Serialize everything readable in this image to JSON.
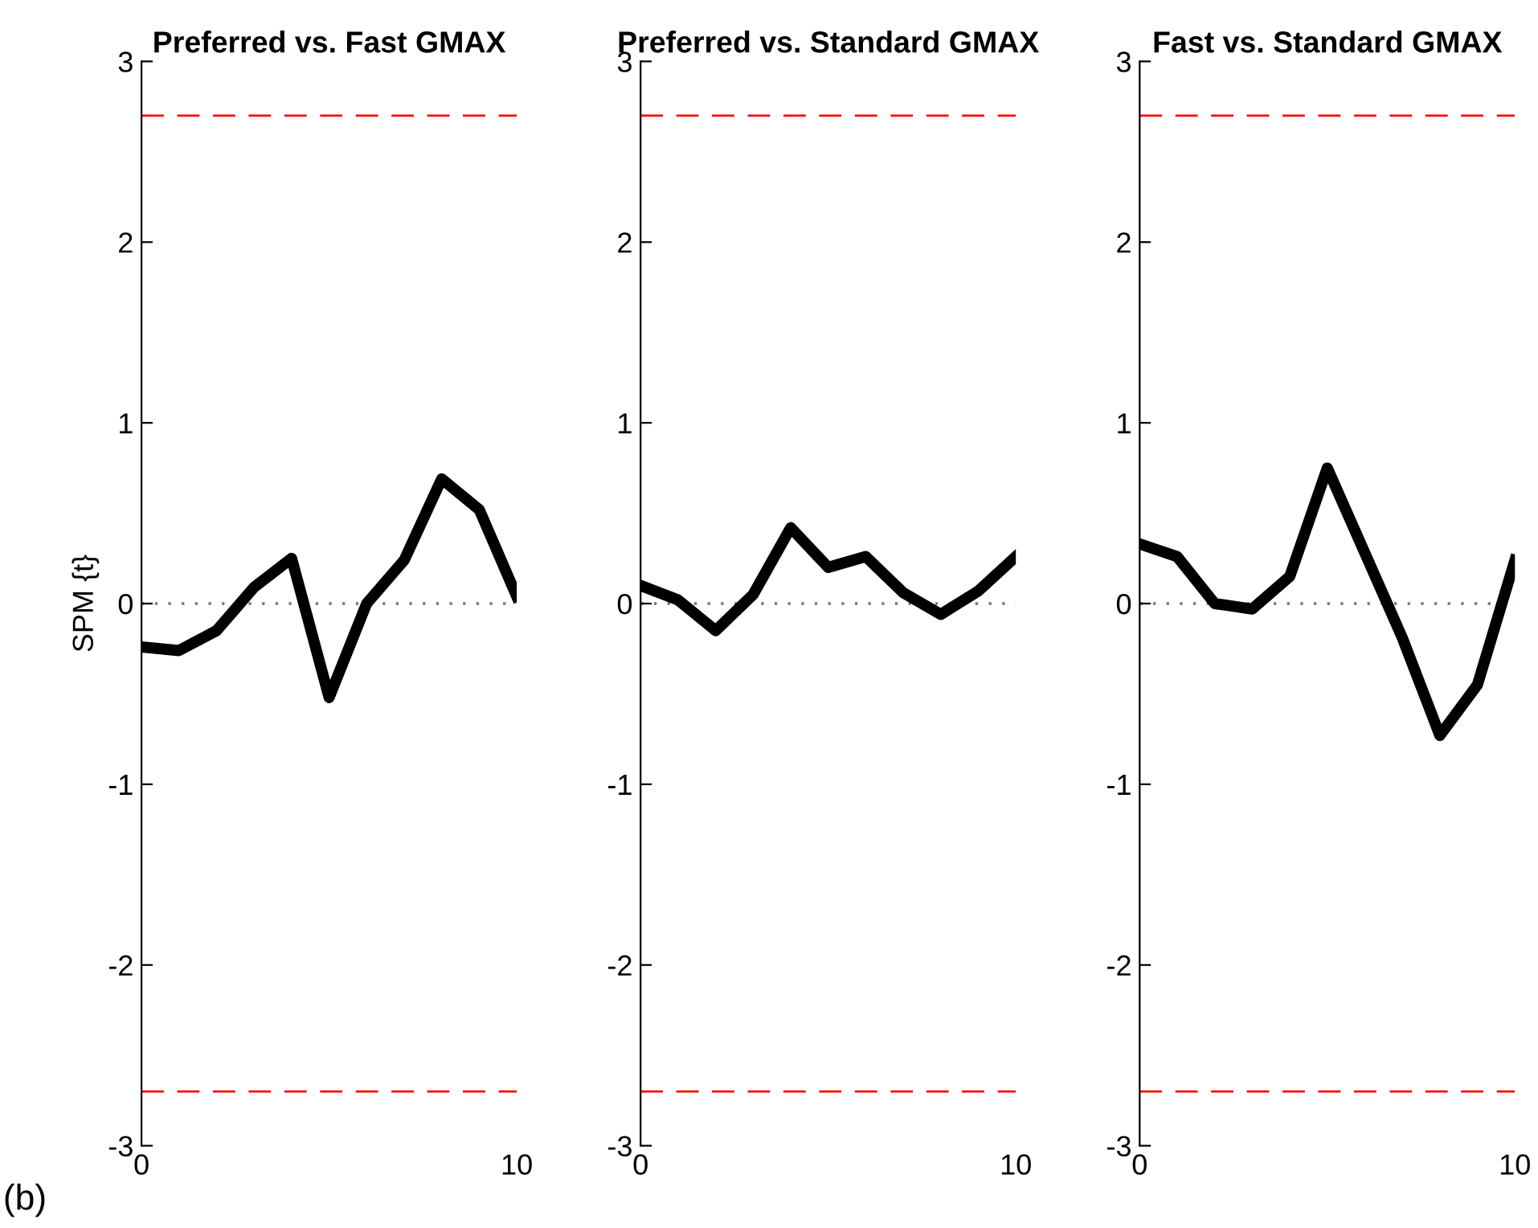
{
  "chart_data": [
    {
      "type": "line",
      "title": "Preferred vs. Fast GMAX",
      "ylabel": "SPM {t}",
      "annotations": [
        "(b)"
      ],
      "x": [
        0,
        1,
        2,
        3,
        4,
        5,
        6,
        7,
        8,
        9,
        10
      ],
      "xlim": [
        0,
        10
      ],
      "xticks": [
        0,
        10
      ],
      "ylim": [
        -3,
        3
      ],
      "yticks": [
        -3,
        -2,
        -1,
        0,
        1,
        2,
        3
      ],
      "grid": false,
      "legend": false,
      "marker": "none",
      "line_style": "solid",
      "series": [
        {
          "color": "#000000",
          "values": [
            -0.24,
            -0.26,
            -0.15,
            0.09,
            0.25,
            -0.52,
            0.0,
            0.24,
            0.69,
            0.52,
            0.04
          ]
        }
      ],
      "ref_lines": [
        {
          "axis": "y",
          "value": 2.7,
          "color": "#ff0000",
          "line_style": "dashed"
        },
        {
          "axis": "y",
          "value": -2.7,
          "color": "#ff0000",
          "line_style": "dashed"
        },
        {
          "axis": "y",
          "value": 0,
          "color": "#777777",
          "line_style": "dotted"
        }
      ]
    },
    {
      "type": "line",
      "title": "Preferred vs. Standard GMAX",
      "x": [
        0,
        1,
        2,
        3,
        4,
        5,
        6,
        7,
        8,
        9,
        10
      ],
      "xlim": [
        0,
        10
      ],
      "xticks": [
        0,
        10
      ],
      "ylim": [
        -3,
        3
      ],
      "yticks": [
        -3,
        -2,
        -1,
        0,
        1,
        2,
        3
      ],
      "grid": false,
      "legend": false,
      "marker": "none",
      "line_style": "solid",
      "series": [
        {
          "color": "#000000",
          "values": [
            0.1,
            0.02,
            -0.15,
            0.05,
            0.42,
            0.2,
            0.26,
            0.06,
            -0.06,
            0.07,
            0.26
          ]
        }
      ],
      "ref_lines": [
        {
          "axis": "y",
          "value": 2.7,
          "color": "#ff0000",
          "line_style": "dashed"
        },
        {
          "axis": "y",
          "value": -2.7,
          "color": "#ff0000",
          "line_style": "dashed"
        },
        {
          "axis": "y",
          "value": 0,
          "color": "#777777",
          "line_style": "dotted"
        }
      ]
    },
    {
      "type": "line",
      "title": "Fast vs. Standard GMAX",
      "x": [
        0,
        1,
        2,
        3,
        4,
        5,
        6,
        7,
        8,
        9,
        10
      ],
      "xlim": [
        0,
        10
      ],
      "xticks": [
        0,
        10
      ],
      "ylim": [
        -3,
        3
      ],
      "yticks": [
        -3,
        -2,
        -1,
        0,
        1,
        2,
        3
      ],
      "grid": false,
      "legend": false,
      "marker": "none",
      "line_style": "solid",
      "series": [
        {
          "color": "#000000",
          "values": [
            0.33,
            0.26,
            0.0,
            -0.03,
            0.15,
            0.75,
            0.28,
            -0.19,
            -0.73,
            -0.45,
            0.24
          ]
        }
      ],
      "ref_lines": [
        {
          "axis": "y",
          "value": 2.7,
          "color": "#ff0000",
          "line_style": "dashed"
        },
        {
          "axis": "y",
          "value": -2.7,
          "color": "#ff0000",
          "line_style": "dashed"
        },
        {
          "axis": "y",
          "value": 0,
          "color": "#777777",
          "line_style": "dotted"
        }
      ]
    }
  ]
}
